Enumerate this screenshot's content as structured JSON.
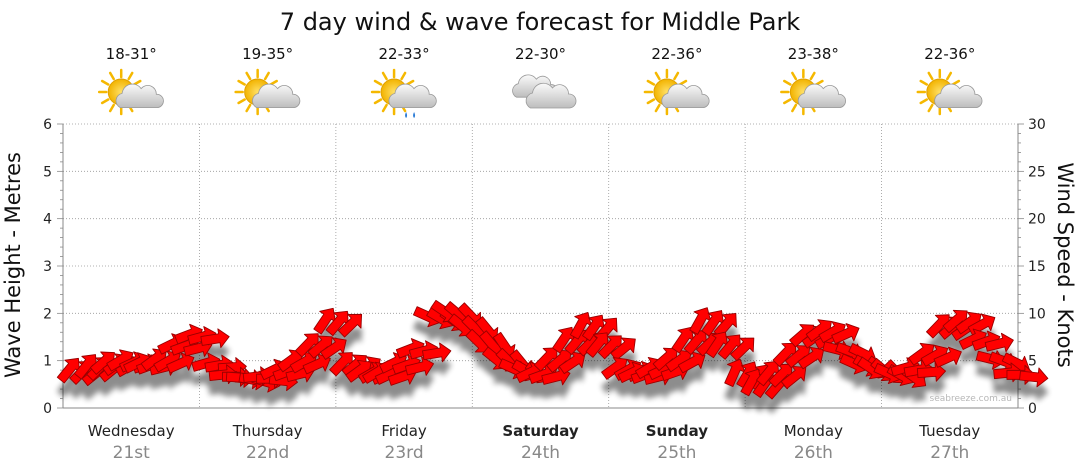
{
  "chart_data": {
    "type": "line",
    "title": "7 day wind & wave forecast for Middle Park",
    "ylabel": "Wave Height - Metres",
    "y2label": "Wind Speed - Knots",
    "ylim": [
      0,
      6
    ],
    "y2lim": [
      0,
      30
    ],
    "yticks": [
      "0",
      "1",
      "2",
      "3",
      "4",
      "5",
      "6"
    ],
    "y2ticks": [
      "0",
      "5",
      "10",
      "15",
      "20",
      "25",
      "30"
    ],
    "grid": true,
    "days": [
      {
        "name": "Wednesday",
        "date": "21st",
        "temp": "18-31°",
        "icon": "sun-cloud-icon",
        "bold": false
      },
      {
        "name": "Thursday",
        "date": "22nd",
        "temp": "19-35°",
        "icon": "sun-cloud-icon",
        "bold": false
      },
      {
        "name": "Friday",
        "date": "23rd",
        "temp": "22-33°",
        "icon": "sun-cloud-rain-icon",
        "bold": false
      },
      {
        "name": "Saturday",
        "date": "24th",
        "temp": "22-30°",
        "icon": "cloud-icon",
        "bold": true
      },
      {
        "name": "Sunday",
        "date": "25th",
        "temp": "22-36°",
        "icon": "sun-cloud-icon",
        "bold": true
      },
      {
        "name": "Monday",
        "date": "26th",
        "temp": "23-38°",
        "icon": "sun-cloud-icon",
        "bold": false
      },
      {
        "name": "Tuesday",
        "date": "27th",
        "temp": "22-36°",
        "icon": "sun-cloud-icon",
        "bold": false
      }
    ],
    "series": [
      {
        "name": "Wind",
        "color": "#ff0000",
        "x": [
          0,
          0.125,
          0.25,
          0.375,
          0.5,
          0.625,
          0.75,
          0.875,
          1,
          1.125,
          1.25,
          1.375,
          1.5,
          1.625,
          1.75,
          1.875,
          2,
          2.125,
          2.25,
          2.375,
          2.5,
          2.625,
          2.75,
          2.875,
          3,
          3.125,
          3.25,
          3.375,
          3.5,
          3.625,
          3.75,
          3.875,
          4,
          4.125,
          4.25,
          4.375,
          4.5,
          4.625,
          4.75,
          4.875,
          5,
          5.125,
          5.25,
          5.375,
          5.5,
          5.625,
          5.75,
          5.875,
          6,
          6.125,
          6.25,
          6.375,
          6.5,
          6.625,
          6.75,
          6.875
        ],
        "speed_knots": [
          3.8,
          4.2,
          4.6,
          4.8,
          4.5,
          4.9,
          6.5,
          7.5,
          4.5,
          3.3,
          3.0,
          3.1,
          3.8,
          4.8,
          6.5,
          9.0,
          4.5,
          3.7,
          3.5,
          4.5,
          6.0,
          9.5,
          10.0,
          8.5,
          6.8,
          5.0,
          4.0,
          3.5,
          5.0,
          7.0,
          8.5,
          6.5,
          4.0,
          3.5,
          4.0,
          5.0,
          7.0,
          9.0,
          6.5,
          3.5,
          2.5,
          3.5,
          5.5,
          7.5,
          8.0,
          6.0,
          4.5,
          4.0,
          3.5,
          4.0,
          5.5,
          8.5,
          9.0,
          7.0,
          5.0,
          3.5
        ],
        "direction_deg": [
          225,
          225,
          235,
          245,
          250,
          240,
          250,
          255,
          260,
          270,
          280,
          270,
          250,
          240,
          230,
          220,
          230,
          240,
          245,
          250,
          255,
          300,
          310,
          315,
          320,
          315,
          300,
          250,
          230,
          220,
          215,
          225,
          240,
          250,
          245,
          235,
          220,
          215,
          220,
          210,
          215,
          225,
          230,
          235,
          240,
          290,
          300,
          310,
          300,
          260,
          240,
          230,
          235,
          250,
          290,
          270
        ]
      }
    ]
  },
  "watermark": "seabreeze.com.au"
}
